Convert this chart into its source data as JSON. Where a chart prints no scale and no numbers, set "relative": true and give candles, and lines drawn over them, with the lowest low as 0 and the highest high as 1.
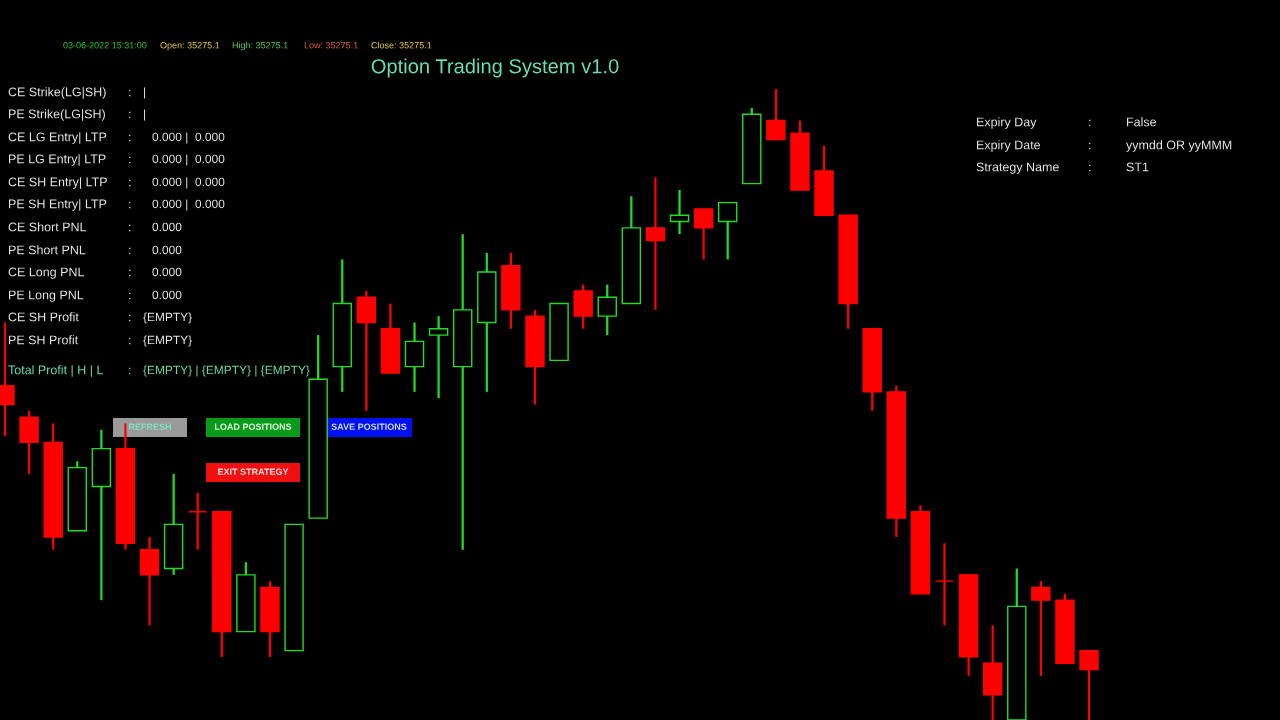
{
  "chart_data": [
    {
      "type": "candlestick",
      "title": "Option Trading System v1.0",
      "relative": true,
      "annotations": [
        "03-06-2022 15:31:00",
        "Open: 35275.1",
        "High: 35275.1",
        "Low: 35275.1",
        "Close: 35275.1"
      ],
      "categories": [
        null,
        null,
        null,
        null,
        null,
        null,
        null,
        null,
        null,
        null,
        null,
        null,
        null,
        null,
        null,
        null,
        null,
        null,
        null,
        null,
        null,
        null,
        null,
        null,
        null,
        null,
        null,
        null,
        null,
        null,
        null,
        null,
        null,
        null,
        null,
        null,
        null,
        null,
        null,
        null,
        null,
        null,
        null,
        null,
        null,
        null
      ],
      "colors": [
        "#ff0000",
        "#ff0000",
        "#ff0000",
        "#22dd22",
        "#22dd22",
        "#ff0000",
        "#ff0000",
        "#22dd22",
        "#ff0000",
        "#ff0000",
        "#22dd22",
        "#ff0000",
        "#22dd22",
        "#22dd22",
        "#22dd22",
        "#ff0000",
        "#ff0000",
        "#22dd22",
        "#22dd22",
        "#22dd22",
        "#22dd22",
        "#ff0000",
        "#ff0000",
        "#22dd22",
        "#ff0000",
        "#22dd22",
        "#22dd22",
        "#ff0000",
        "#22dd22",
        "#ff0000",
        "#22dd22",
        "#22dd22",
        "#ff0000",
        "#ff0000",
        "#ff0000",
        "#ff0000",
        "#ff0000",
        "#ff0000",
        "#ff0000",
        "#ff0000",
        "#ff0000",
        "#ff0000",
        "#22dd22",
        "#ff0000",
        "#ff0000",
        "#ff0000"
      ],
      "ohlc": [
        [
          0.53,
          0.63,
          0.45,
          0.5
        ],
        [
          0.48,
          0.49,
          0.39,
          0.44
        ],
        [
          0.44,
          0.47,
          0.27,
          0.29
        ],
        [
          0.3,
          0.41,
          0.3,
          0.4
        ],
        [
          0.37,
          0.46,
          0.19,
          0.43
        ],
        [
          0.43,
          0.47,
          0.27,
          0.28
        ],
        [
          0.27,
          0.29,
          0.15,
          0.23
        ],
        [
          0.24,
          0.39,
          0.23,
          0.31
        ],
        [
          0.33,
          0.36,
          0.27,
          0.33
        ],
        [
          0.33,
          0.33,
          0.1,
          0.14
        ],
        [
          0.14,
          0.25,
          0.14,
          0.23
        ],
        [
          0.21,
          0.22,
          0.1,
          0.14
        ],
        [
          0.11,
          0.31,
          0.11,
          0.31
        ],
        [
          0.32,
          0.61,
          0.32,
          0.54
        ],
        [
          0.56,
          0.73,
          0.52,
          0.66
        ],
        [
          0.67,
          0.68,
          0.49,
          0.63
        ],
        [
          0.62,
          0.66,
          0.55,
          0.55
        ],
        [
          0.56,
          0.63,
          0.52,
          0.6
        ],
        [
          0.61,
          0.64,
          0.51,
          0.62
        ],
        [
          0.56,
          0.77,
          0.27,
          0.65
        ],
        [
          0.63,
          0.74,
          0.52,
          0.71
        ],
        [
          0.72,
          0.74,
          0.62,
          0.65
        ],
        [
          0.64,
          0.65,
          0.5,
          0.56
        ],
        [
          0.57,
          0.66,
          0.57,
          0.66
        ],
        [
          0.68,
          0.69,
          0.62,
          0.64
        ],
        [
          0.64,
          0.69,
          0.61,
          0.67
        ],
        [
          0.66,
          0.83,
          0.66,
          0.78
        ],
        [
          0.78,
          0.86,
          0.65,
          0.76
        ],
        [
          0.79,
          0.84,
          0.77,
          0.8
        ],
        [
          0.81,
          0.81,
          0.73,
          0.78
        ],
        [
          0.79,
          0.82,
          0.73,
          0.82
        ],
        [
          0.85,
          0.97,
          0.85,
          0.96
        ],
        [
          0.95,
          1.0,
          0.92,
          0.92
        ],
        [
          0.93,
          0.95,
          0.84,
          0.84
        ],
        [
          0.87,
          0.91,
          0.8,
          0.8
        ],
        [
          0.8,
          0.8,
          0.62,
          0.66
        ],
        [
          0.62,
          0.62,
          0.49,
          0.52
        ],
        [
          0.52,
          0.53,
          0.29,
          0.32
        ],
        [
          0.33,
          0.34,
          0.2,
          0.2
        ],
        [
          0.22,
          0.28,
          0.15,
          0.22
        ],
        [
          0.23,
          0.23,
          0.07,
          0.1
        ],
        [
          0.09,
          0.15,
          0.0,
          0.04
        ],
        [
          0.0,
          0.24,
          0.0,
          0.18
        ],
        [
          0.21,
          0.22,
          0.07,
          0.19
        ],
        [
          0.19,
          0.2,
          0.09,
          0.09
        ],
        [
          0.11,
          0.11,
          0.0,
          0.08
        ]
      ]
    },
    {
      "type": "other",
      "annotations": [
        "CE Strike(LG|SH)",
        ":",
        "|",
        "PE Strike(LG|SH)",
        ":",
        "|",
        "CE LG Entry| LTP",
        ":",
        "0.000 |  0.000",
        "PE LG Entry| LTP",
        ":",
        "0.000 |  0.000",
        "CE SH Entry| LTP",
        ":",
        "0.000 |  0.000",
        "PE SH Entry| LTP",
        ":",
        "0.000 |  0.000",
        "CE Short PNL",
        ":",
        "0.000",
        "PE Short PNL",
        ":",
        "0.000",
        "CE Long PNL",
        ":",
        "0.000",
        "PE Long PNL",
        ":",
        "0.000",
        "CE SH Profit",
        ":",
        "{EMPTY}",
        "PE SH Profit",
        ":",
        "{EMPTY}",
        "Total Profit | H | L",
        ":",
        "{EMPTY} | {EMPTY} | {EMPTY}",
        "Expiry Day",
        ":",
        "False",
        "Expiry Date",
        ":",
        "yymdd OR yyMMM",
        "Strategy Name",
        ":",
        "ST1",
        "REFRESH",
        "LOAD POSITIONS",
        "SAVE POSITIONS",
        "EXIT STRATEGY"
      ]
    }
  ]
}
